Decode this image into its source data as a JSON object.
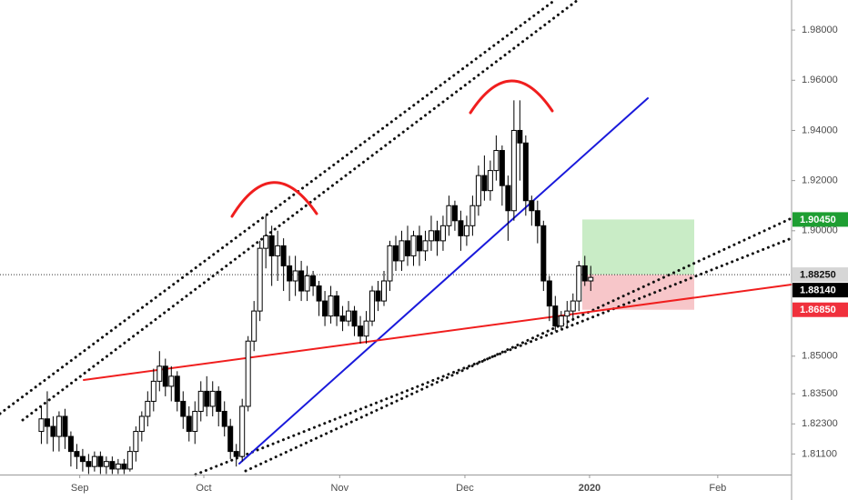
{
  "chart_data": {
    "type": "candlestick",
    "xlim": [
      -7,
      127
    ],
    "xticks": [
      {
        "value": 6.5,
        "label": "Sep"
      },
      {
        "value": 27.5,
        "label": "Oct"
      },
      {
        "value": 50.5,
        "label": "Nov"
      },
      {
        "value": 71.7,
        "label": "Dec"
      },
      {
        "value": 92.8,
        "label": "2020"
      },
      {
        "value": 114.5,
        "label": "Feb"
      }
    ],
    "ylim": [
      1.8028,
      1.992
    ],
    "yticks": [
      {
        "value": 1.98,
        "label": "1.98000"
      },
      {
        "value": 1.96,
        "label": "1.96000"
      },
      {
        "value": 1.94,
        "label": "1.94000"
      },
      {
        "value": 1.92,
        "label": "1.92000"
      },
      {
        "value": 1.9,
        "label": "1.90000"
      },
      {
        "value": 1.85,
        "label": "1.85000"
      },
      {
        "value": 1.835,
        "label": "1.83500"
      },
      {
        "value": 1.823,
        "label": "1.82300"
      },
      {
        "value": 1.811,
        "label": "1.81100"
      }
    ],
    "up_color": "#ffffff",
    "down_color": "#000000",
    "open": [
      1.82,
      1.825,
      1.822,
      1.818,
      1.826,
      1.818,
      1.812,
      1.81,
      1.808,
      1.806,
      1.81,
      1.806,
      1.808,
      1.805,
      1.807,
      1.805,
      1.812,
      1.82,
      1.826,
      1.832,
      1.84,
      1.846,
      1.838,
      1.842,
      1.832,
      1.826,
      1.82,
      1.828,
      1.836,
      1.83,
      1.836,
      1.828,
      1.822,
      1.812,
      1.81,
      1.83,
      1.856,
      1.868,
      1.893,
      1.898,
      1.89,
      1.894,
      1.886,
      1.88,
      1.884,
      1.876,
      1.882,
      1.878,
      1.872,
      1.866,
      1.874,
      1.866,
      1.864,
      1.868,
      1.862,
      1.858,
      1.864,
      1.876,
      1.872,
      1.88,
      1.894,
      1.888,
      1.896,
      1.89,
      1.898,
      1.892,
      1.896,
      1.9,
      1.896,
      1.902,
      1.91,
      1.904,
      1.898,
      1.902,
      1.91,
      1.922,
      1.916,
      1.924,
      1.932,
      1.918,
      1.908,
      1.94,
      1.935,
      1.912,
      1.908,
      1.902,
      1.88,
      1.87,
      1.862,
      1.866,
      1.868,
      1.872,
      1.886,
      1.88
    ],
    "high": [
      1.83,
      1.836,
      1.826,
      1.828,
      1.829,
      1.82,
      1.815,
      1.813,
      1.811,
      1.812,
      1.812,
      1.81,
      1.81,
      1.809,
      1.809,
      1.814,
      1.822,
      1.828,
      1.836,
      1.845,
      1.852,
      1.849,
      1.846,
      1.844,
      1.836,
      1.83,
      1.832,
      1.84,
      1.842,
      1.84,
      1.838,
      1.832,
      1.825,
      1.815,
      1.833,
      1.858,
      1.872,
      1.896,
      1.906,
      1.902,
      1.9,
      1.897,
      1.89,
      1.89,
      1.888,
      1.886,
      1.884,
      1.88,
      1.876,
      1.878,
      1.876,
      1.87,
      1.872,
      1.87,
      1.866,
      1.868,
      1.878,
      1.88,
      1.884,
      1.896,
      1.898,
      1.9,
      1.902,
      1.9,
      1.902,
      1.9,
      1.906,
      1.904,
      1.906,
      1.914,
      1.912,
      1.908,
      1.906,
      1.914,
      1.926,
      1.93,
      1.928,
      1.938,
      1.934,
      1.922,
      1.952,
      1.952,
      1.938,
      1.914,
      1.912,
      1.904,
      1.882,
      1.874,
      1.868,
      1.872,
      1.875,
      1.888,
      1.89,
      1.886
    ],
    "low": [
      1.815,
      1.815,
      1.812,
      1.812,
      1.813,
      1.806,
      1.805,
      1.804,
      1.803,
      1.804,
      1.803,
      1.803,
      1.803,
      1.803,
      1.803,
      1.804,
      1.808,
      1.816,
      1.822,
      1.828,
      1.836,
      1.834,
      1.832,
      1.828,
      1.821,
      1.816,
      1.815,
      1.824,
      1.826,
      1.826,
      1.822,
      1.818,
      1.809,
      1.806,
      1.808,
      1.828,
      1.852,
      1.864,
      1.885,
      1.878,
      1.88,
      1.876,
      1.872,
      1.874,
      1.872,
      1.872,
      1.874,
      1.866,
      1.862,
      1.863,
      1.862,
      1.86,
      1.862,
      1.858,
      1.855,
      1.855,
      1.862,
      1.868,
      1.87,
      1.876,
      1.884,
      1.884,
      1.886,
      1.886,
      1.886,
      1.888,
      1.892,
      1.89,
      1.892,
      1.898,
      1.9,
      1.892,
      1.894,
      1.898,
      1.906,
      1.912,
      1.912,
      1.92,
      1.91,
      1.896,
      1.904,
      1.92,
      1.906,
      1.902,
      1.895,
      1.876,
      1.864,
      1.86,
      1.861,
      1.862,
      1.864,
      1.868,
      1.878,
      1.876
    ],
    "close": [
      1.825,
      1.822,
      1.818,
      1.826,
      1.818,
      1.812,
      1.81,
      1.808,
      1.806,
      1.81,
      1.806,
      1.808,
      1.805,
      1.807,
      1.805,
      1.812,
      1.82,
      1.826,
      1.832,
      1.84,
      1.846,
      1.838,
      1.842,
      1.832,
      1.826,
      1.82,
      1.828,
      1.836,
      1.83,
      1.836,
      1.828,
      1.822,
      1.812,
      1.81,
      1.83,
      1.856,
      1.868,
      1.893,
      1.898,
      1.89,
      1.894,
      1.886,
      1.88,
      1.884,
      1.876,
      1.882,
      1.878,
      1.872,
      1.866,
      1.874,
      1.866,
      1.864,
      1.868,
      1.862,
      1.858,
      1.864,
      1.876,
      1.872,
      1.88,
      1.894,
      1.888,
      1.896,
      1.89,
      1.898,
      1.892,
      1.896,
      1.9,
      1.896,
      1.902,
      1.91,
      1.904,
      1.898,
      1.902,
      1.91,
      1.922,
      1.916,
      1.924,
      1.932,
      1.918,
      1.908,
      1.94,
      1.935,
      1.912,
      1.908,
      1.902,
      1.88,
      1.87,
      1.862,
      1.866,
      1.868,
      1.872,
      1.886,
      1.88,
      1.8814
    ],
    "markers": [
      {
        "value": 1.9045,
        "label": "1.90450",
        "color": "#1e9e32"
      },
      {
        "value": 1.8825,
        "label": "1.88250",
        "color": "#d6d6d6"
      },
      {
        "value": 1.8814,
        "label": "1.88140",
        "color": "#000000"
      },
      {
        "value": 1.8685,
        "label": "1.86850",
        "color": "#f0303c"
      }
    ]
  }
}
